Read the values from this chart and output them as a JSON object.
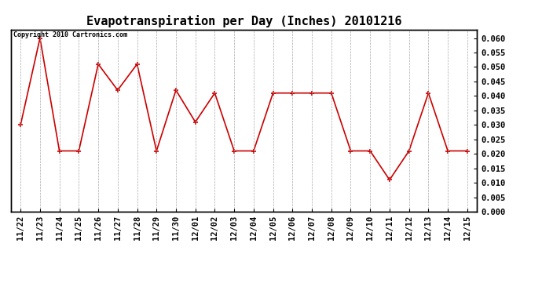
{
  "title": "Evapotranspiration per Day (Inches) 20101216",
  "copyright_text": "Copyright 2010 Cartronics.com",
  "x_labels": [
    "11/22",
    "11/23",
    "11/24",
    "11/25",
    "11/26",
    "11/27",
    "11/28",
    "11/29",
    "11/30",
    "12/01",
    "12/02",
    "12/03",
    "12/04",
    "12/05",
    "12/06",
    "12/07",
    "12/08",
    "12/09",
    "12/10",
    "12/11",
    "12/12",
    "12/13",
    "12/14",
    "12/15"
  ],
  "y_values": [
    0.03,
    0.06,
    0.021,
    0.021,
    0.051,
    0.042,
    0.051,
    0.021,
    0.042,
    0.031,
    0.041,
    0.021,
    0.021,
    0.041,
    0.041,
    0.041,
    0.041,
    0.021,
    0.021,
    0.011,
    0.021,
    0.041,
    0.021,
    0.021
  ],
  "line_color": "#cc0000",
  "marker": "+",
  "marker_size": 5,
  "ylim": [
    0.0,
    0.063
  ],
  "yticks": [
    0.0,
    0.005,
    0.01,
    0.015,
    0.02,
    0.025,
    0.03,
    0.035,
    0.04,
    0.045,
    0.05,
    0.055,
    0.06
  ],
  "background_color": "#ffffff",
  "grid_color": "#aaaaaa",
  "title_fontsize": 11,
  "copyright_fontsize": 6,
  "tick_fontsize": 7.5
}
